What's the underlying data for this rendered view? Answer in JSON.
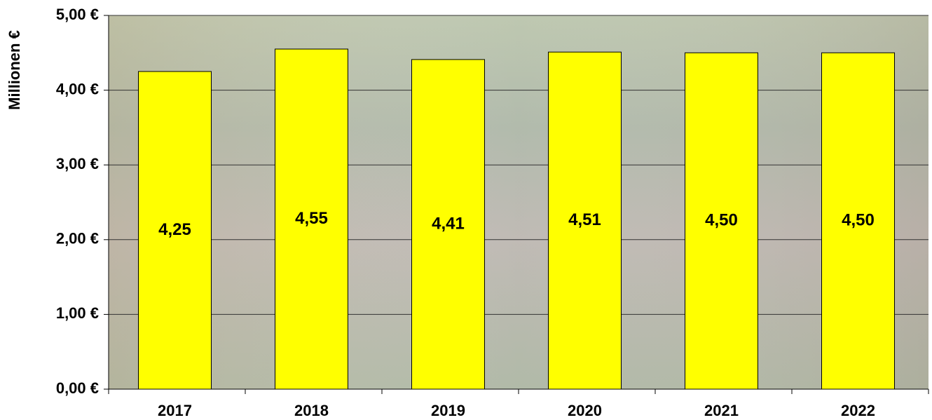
{
  "chart_data": {
    "type": "bar",
    "y_label": "Millionen €",
    "categories": [
      "2017",
      "2018",
      "2019",
      "2020",
      "2021",
      "2022"
    ],
    "values": [
      4.25,
      4.55,
      4.41,
      4.51,
      4.5,
      4.5
    ],
    "value_labels": [
      "4,25",
      "4,55",
      "4,41",
      "4,51",
      "4,50",
      "4,50"
    ],
    "color": "#ffff00",
    "ylim": [
      0,
      5
    ],
    "yticks": [
      {
        "value": 0,
        "label": "0,00 €"
      },
      {
        "value": 1,
        "label": "1,00 €"
      },
      {
        "value": 2,
        "label": "2,00 €"
      },
      {
        "value": 3,
        "label": "3,00 €"
      },
      {
        "value": 4,
        "label": "4,00 €"
      },
      {
        "value": 5,
        "label": "5,00 €"
      }
    ],
    "grid": true
  }
}
